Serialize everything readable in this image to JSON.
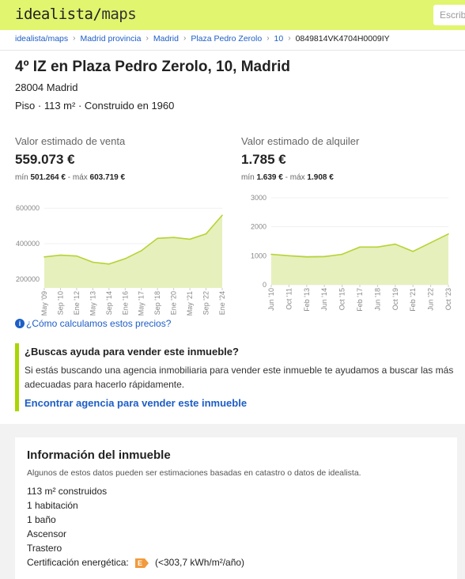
{
  "header": {
    "logo_main": "idealista",
    "logo_slash": "/",
    "logo_maps": "maps",
    "search_placeholder": "Escribe"
  },
  "breadcrumb": [
    {
      "label": "idealista/maps"
    },
    {
      "label": "Madrid provincia"
    },
    {
      "label": "Madrid"
    },
    {
      "label": "Plaza Pedro Zerolo"
    },
    {
      "label": "10"
    },
    {
      "label": "0849814VK4704H0009IY"
    }
  ],
  "property": {
    "title": "4º IZ en Plaza Pedro Zerolo, 10, Madrid",
    "postal": "28004 Madrid",
    "specs": "Piso · 113 m² · Construido en 1960"
  },
  "sale": {
    "label": "Valor estimado de venta",
    "value": "559.073 €",
    "min_label": "mín",
    "min_value": "501.264 €",
    "sep": "-",
    "max_label": "máx",
    "max_value": "603.719 €"
  },
  "rent": {
    "label": "Valor estimado de alquiler",
    "value": "1.785 €",
    "min_label": "mín",
    "min_value": "1.639 €",
    "sep": "-",
    "max_label": "máx",
    "max_value": "1.908 €"
  },
  "chart_data": [
    {
      "type": "area",
      "yticks": [
        "600000",
        "400000",
        "200000"
      ],
      "ylim": [
        150000,
        650000
      ],
      "color": "#b5d334",
      "fill": "#e6f0bd",
      "x": [
        "May '09",
        "Sep '10",
        "Ene '12",
        "May '13",
        "Sep '14",
        "Ene '16",
        "May '17",
        "Sep '18",
        "Ene '20",
        "May '21",
        "Sep '22",
        "Ene '24"
      ],
      "values": [
        325000,
        335000,
        330000,
        295000,
        285000,
        315000,
        360000,
        430000,
        435000,
        425000,
        455000,
        560000
      ]
    },
    {
      "type": "area",
      "yticks": [
        "3000",
        "2000",
        "1000",
        "0"
      ],
      "ylim": [
        0,
        3000
      ],
      "color": "#b5d334",
      "fill": "#e6f0bd",
      "x": [
        "Jun '10",
        "Oct '11",
        "Feb '13",
        "Jun '14",
        "Oct '15",
        "Feb '17",
        "Jun '18",
        "Oct '19",
        "Feb '21",
        "Jun '22",
        "Oct '23"
      ],
      "values": [
        1050,
        1000,
        960,
        970,
        1050,
        1300,
        1300,
        1400,
        1150,
        1450,
        1750
      ]
    }
  ],
  "help": {
    "icon": "info-icon",
    "link": "¿Cómo calculamos estos precios?"
  },
  "callout": {
    "title": "¿Buscas ayuda para vender este inmueble?",
    "text": "Si estás buscando una agencia inmobiliaria para vender este inmueble te ayudamos a buscar las más adecuadas para hacerlo rápidamente.",
    "link": "Encontrar agencia para vender este inmueble"
  },
  "info": {
    "title": "Información del inmueble",
    "subtitle": "Algunos de estos datos pueden ser estimaciones basadas en catastro o datos de idealista.",
    "items": [
      "113 m² construidos",
      "1 habitación",
      "1 baño",
      "Ascensor",
      "Trastero"
    ],
    "energy_label": "Certificación energética:",
    "energy_rating": "E",
    "energy_value": "(<303,7 kWh/m²/año)",
    "energy_color": "#f29a3c"
  }
}
